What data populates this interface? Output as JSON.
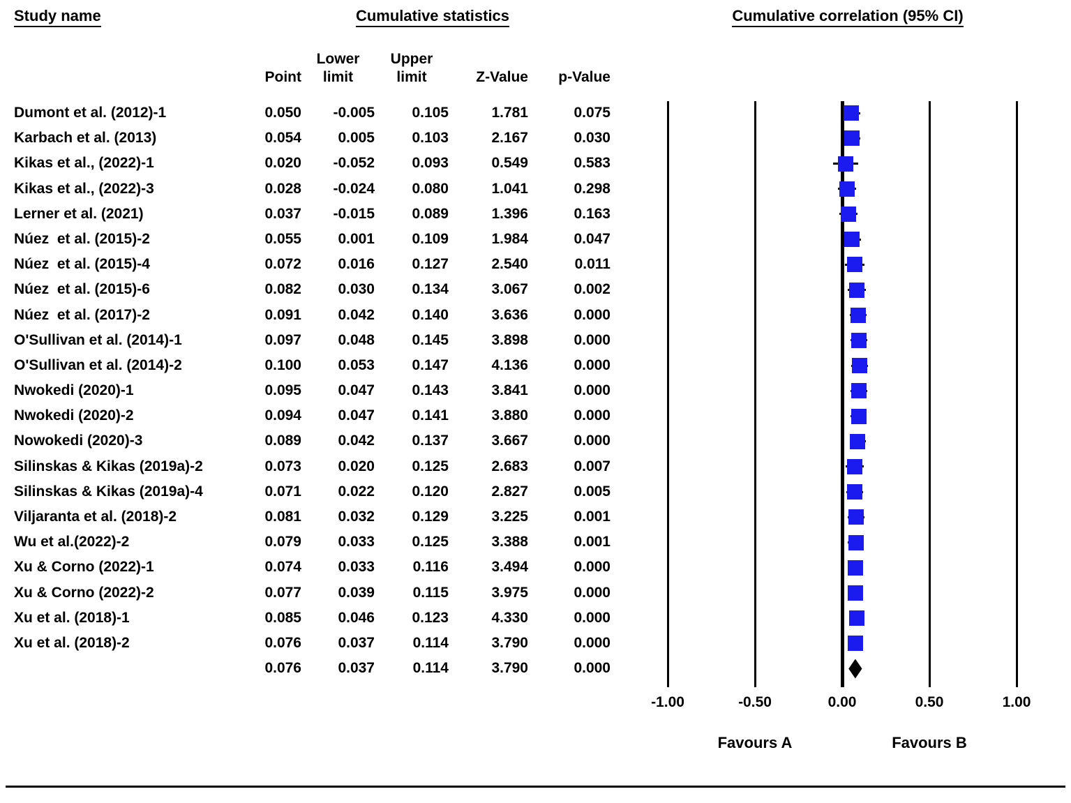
{
  "figure": {
    "headers": {
      "study": "Study name",
      "stats_group": "Cumulative statistics",
      "plot_group": "Cumulative correlation (95% CI)",
      "point": "Point",
      "lower_line1": "Lower",
      "lower_line2": "limit",
      "upper_line1": "Upper",
      "upper_line2": "limit",
      "z": "Z-Value",
      "p": "p-Value"
    },
    "axis": {
      "tick_labels": [
        "-1.00",
        "-0.50",
        "0.00",
        "0.50",
        "1.00"
      ],
      "tick_values": [
        -1,
        -0.5,
        0,
        0.5,
        1
      ],
      "favours_a": "Favours A",
      "favours_b": "Favours B"
    },
    "colors": {
      "marker": "#1b1bef",
      "line": "#000000",
      "diamond": "#000000"
    }
  },
  "chart_data": {
    "type": "forest",
    "title": "Cumulative correlation (95% CI)",
    "xlim": [
      -1,
      1
    ],
    "x_ticks": [
      -1.0,
      -0.5,
      0.0,
      0.5,
      1.0
    ],
    "legend": "blue squares = cumulative point estimate with 95% CI whisker; black diamond = overall",
    "rows": [
      {
        "study": "Dumont et al. (2012)-1",
        "point": "0.050",
        "lower": "-0.005",
        "upper": "0.105",
        "z": "1.781",
        "p": "0.075"
      },
      {
        "study": "Karbach et al. (2013)",
        "point": "0.054",
        "lower": "0.005",
        "upper": "0.103",
        "z": "2.167",
        "p": "0.030"
      },
      {
        "study": "Kikas et al., (2022)-1",
        "point": "0.020",
        "lower": "-0.052",
        "upper": "0.093",
        "z": "0.549",
        "p": "0.583"
      },
      {
        "study": "Kikas et al., (2022)-3",
        "point": "0.028",
        "lower": "-0.024",
        "upper": "0.080",
        "z": "1.041",
        "p": "0.298"
      },
      {
        "study": "Lerner et al. (2021)",
        "point": "0.037",
        "lower": "-0.015",
        "upper": "0.089",
        "z": "1.396",
        "p": "0.163"
      },
      {
        "study": "Núez  et al. (2015)-2",
        "point": "0.055",
        "lower": "0.001",
        "upper": "0.109",
        "z": "1.984",
        "p": "0.047"
      },
      {
        "study": "Núez  et al. (2015)-4",
        "point": "0.072",
        "lower": "0.016",
        "upper": "0.127",
        "z": "2.540",
        "p": "0.011"
      },
      {
        "study": "Núez  et al. (2015)-6",
        "point": "0.082",
        "lower": "0.030",
        "upper": "0.134",
        "z": "3.067",
        "p": "0.002"
      },
      {
        "study": "Núez  et al. (2017)-2",
        "point": "0.091",
        "lower": "0.042",
        "upper": "0.140",
        "z": "3.636",
        "p": "0.000"
      },
      {
        "study": "O'Sullivan et al. (2014)-1",
        "point": "0.097",
        "lower": "0.048",
        "upper": "0.145",
        "z": "3.898",
        "p": "0.000"
      },
      {
        "study": "O'Sullivan et al. (2014)-2",
        "point": "0.100",
        "lower": "0.053",
        "upper": "0.147",
        "z": "4.136",
        "p": "0.000"
      },
      {
        "study": "Nwokedi (2020)-1",
        "point": "0.095",
        "lower": "0.047",
        "upper": "0.143",
        "z": "3.841",
        "p": "0.000"
      },
      {
        "study": "Nwokedi (2020)-2",
        "point": "0.094",
        "lower": "0.047",
        "upper": "0.141",
        "z": "3.880",
        "p": "0.000"
      },
      {
        "study": "Nowokedi (2020)-3",
        "point": "0.089",
        "lower": "0.042",
        "upper": "0.137",
        "z": "3.667",
        "p": "0.000"
      },
      {
        "study": "Silinskas & Kikas (2019a)-2",
        "point": "0.073",
        "lower": "0.020",
        "upper": "0.125",
        "z": "2.683",
        "p": "0.007"
      },
      {
        "study": "Silinskas & Kikas (2019a)-4",
        "point": "0.071",
        "lower": "0.022",
        "upper": "0.120",
        "z": "2.827",
        "p": "0.005"
      },
      {
        "study": "Viljaranta et al. (2018)-2",
        "point": "0.081",
        "lower": "0.032",
        "upper": "0.129",
        "z": "3.225",
        "p": "0.001"
      },
      {
        "study": "Wu et al.(2022)-2",
        "point": "0.079",
        "lower": "0.033",
        "upper": "0.125",
        "z": "3.388",
        "p": "0.001"
      },
      {
        "study": "Xu & Corno (2022)-1",
        "point": "0.074",
        "lower": "0.033",
        "upper": "0.116",
        "z": "3.494",
        "p": "0.000"
      },
      {
        "study": "Xu & Corno (2022)-2",
        "point": "0.077",
        "lower": "0.039",
        "upper": "0.115",
        "z": "3.975",
        "p": "0.000"
      },
      {
        "study": "Xu et al. (2018)-1",
        "point": "0.085",
        "lower": "0.046",
        "upper": "0.123",
        "z": "4.330",
        "p": "0.000"
      },
      {
        "study": "Xu et al. (2018)-2",
        "point": "0.076",
        "lower": "0.037",
        "upper": "0.114",
        "z": "3.790",
        "p": "0.000"
      }
    ],
    "overall": {
      "study": "",
      "point": "0.076",
      "lower": "0.037",
      "upper": "0.114",
      "z": "3.790",
      "p": "0.000"
    }
  }
}
